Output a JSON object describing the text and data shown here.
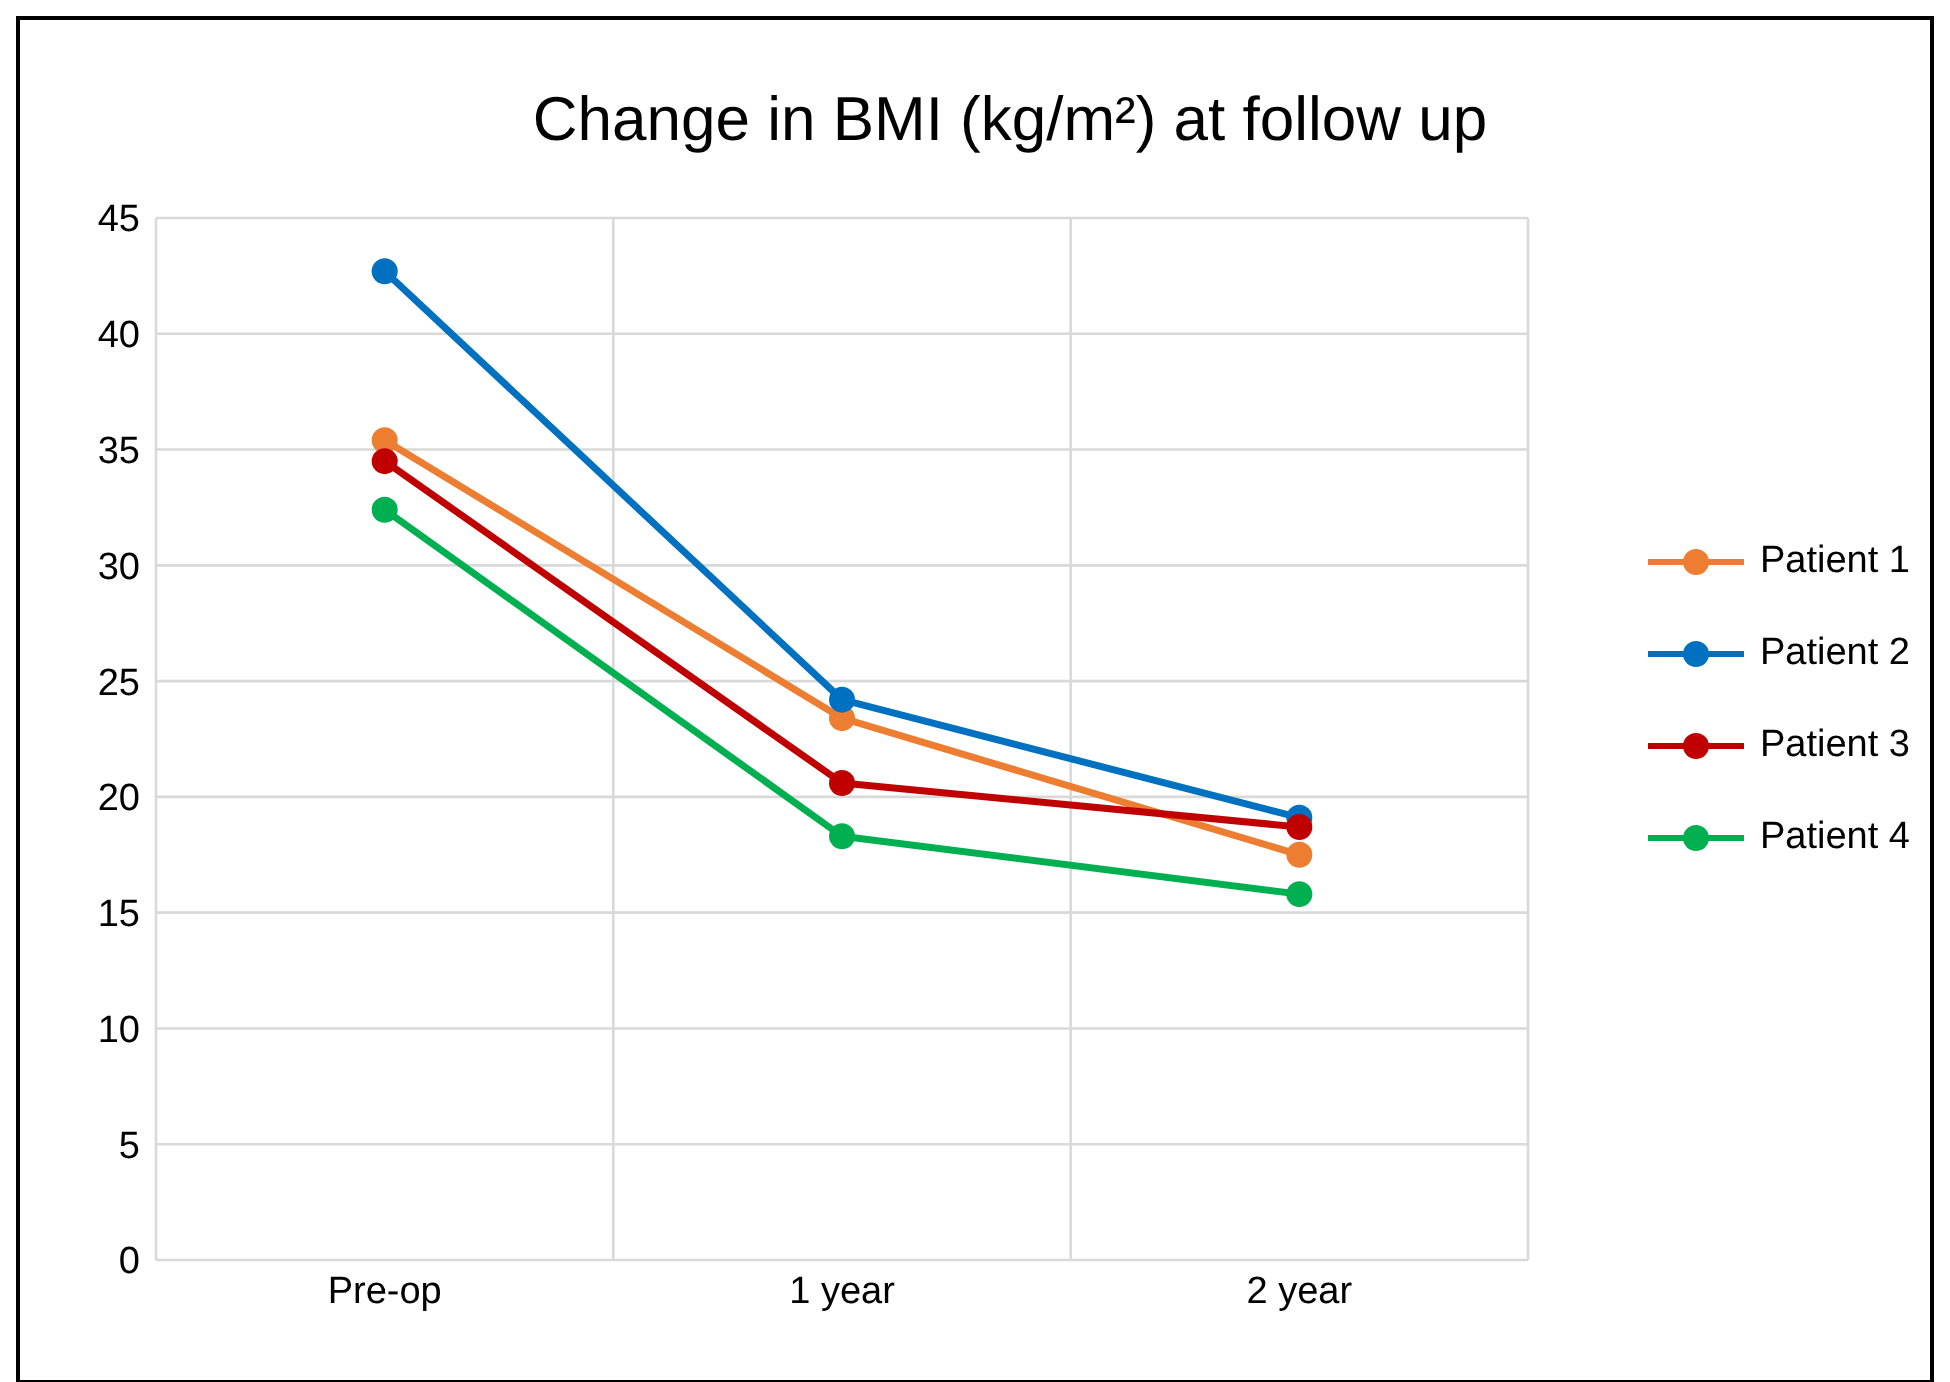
{
  "chart_data": {
    "type": "line",
    "title": "Change in BMI (kg/m²) at follow up",
    "categories": [
      "Pre-op",
      "1 year",
      "2 year"
    ],
    "series": [
      {
        "name": "Patient 1",
        "color": "#ed7d31",
        "values": [
          35.4,
          23.4,
          17.5
        ]
      },
      {
        "name": "Patient 2",
        "color": "#0070c0",
        "values": [
          42.7,
          24.2,
          19.1
        ]
      },
      {
        "name": "Patient 3",
        "color": "#c00000",
        "values": [
          34.5,
          20.6,
          18.7
        ]
      },
      {
        "name": "Patient 4",
        "color": "#00b050",
        "values": [
          32.4,
          18.3,
          15.8
        ]
      }
    ],
    "ylim": [
      0,
      45
    ],
    "yticks": [
      0,
      5,
      10,
      15,
      20,
      25,
      30,
      35,
      40,
      45
    ],
    "grid": true,
    "legend": "right",
    "marker": "circle",
    "line_style": "solid"
  }
}
